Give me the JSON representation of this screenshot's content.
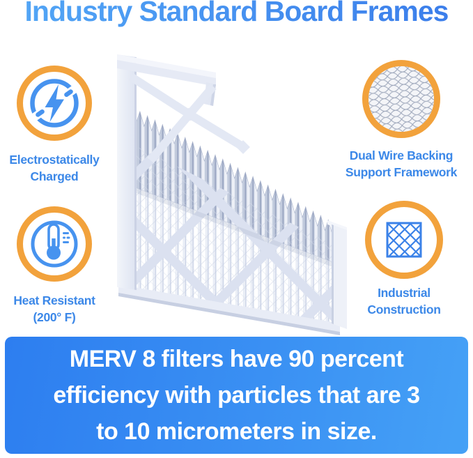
{
  "page": {
    "title": "Industry Standard Board Frames"
  },
  "features": [
    {
      "id": "electrostatic",
      "icon": "lightning-icon",
      "label_lines": [
        "Electrostatically",
        "Charged"
      ]
    },
    {
      "id": "wire-backing",
      "icon": "wire-mesh-icon",
      "label_lines": [
        "Dual Wire Backing",
        "Support Framework"
      ]
    },
    {
      "id": "heat-resistant",
      "icon": "thermometer-icon",
      "label_lines": [
        "Heat Resistant",
        "(200° F)"
      ]
    },
    {
      "id": "industrial",
      "icon": "diamond-lattice-icon",
      "label_lines": [
        "Industrial",
        "Construction"
      ]
    }
  ],
  "illustration": {
    "name": "pleated-air-filter-with-board-frame"
  },
  "banner": {
    "lines": [
      "MERV 8 filters have 90 percent",
      "efficiency with particles that are 3",
      "to 10 micrometers in size."
    ]
  },
  "colors": {
    "accent_orange": "#F2A23C",
    "icon_blue": "#4793EF",
    "label_blue": "#3C88E8",
    "title_blue": "#4194F1",
    "banner_blue_start": "#2D7EF0",
    "banner_blue_end": "#45A1F6",
    "banner_text": "#FFFFFF",
    "frame_light": "#E9EDF7",
    "pleat_gray": "#B7C1D8"
  }
}
